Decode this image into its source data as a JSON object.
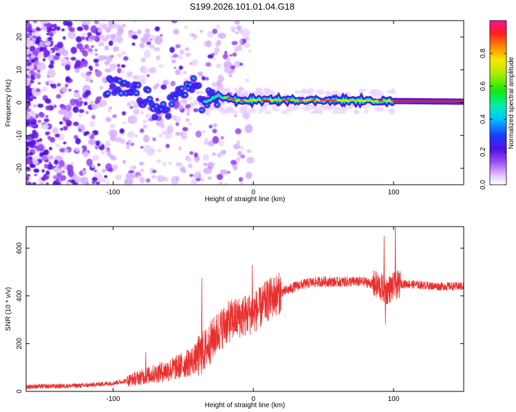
{
  "title": "S199.2026.101.01.04.G18",
  "chart_data": [
    {
      "type": "heatmap",
      "xlabel": "Height of straight line (km)",
      "ylabel": "Frequency (Hz)",
      "xlim": [
        -162,
        150
      ],
      "ylim": [
        -25,
        25
      ],
      "xticks": [
        "-100",
        "0",
        "100"
      ],
      "yticks": [
        "-20",
        "-10",
        "0",
        "10",
        "20"
      ],
      "colorbar": {
        "label": "Normalized spectral amplitude",
        "range": [
          0,
          1
        ],
        "ticks": [
          "0.0",
          "0.2",
          "0.4",
          "0.6",
          "0.8"
        ]
      },
      "ridge": [
        {
          "x": -105,
          "y": 5
        },
        {
          "x": -95,
          "y": 4
        },
        {
          "x": -85,
          "y": 3
        },
        {
          "x": -75,
          "y": 1
        },
        {
          "x": -68,
          "y": -3
        },
        {
          "x": -60,
          "y": -1
        },
        {
          "x": -50,
          "y": 4
        },
        {
          "x": -42,
          "y": 6
        },
        {
          "x": -36,
          "y": 0
        },
        {
          "x": -25,
          "y": 2
        },
        {
          "x": -18,
          "y": 1.5
        },
        {
          "x": -10,
          "y": 0.5
        },
        {
          "x": 0,
          "y": 0.8
        },
        {
          "x": 40,
          "y": 0.8
        },
        {
          "x": 90,
          "y": 0.5
        },
        {
          "x": 100,
          "y": 0.5
        },
        {
          "x": 150,
          "y": 0.3
        }
      ]
    },
    {
      "type": "line",
      "xlabel": "Height of straight line (km)",
      "ylabel": "SNR (10 * v/v)",
      "xlim": [
        -162,
        150
      ],
      "ylim": [
        0,
        690
      ],
      "xticks": [
        "-100",
        "0",
        "100"
      ],
      "yticks": [
        "0",
        "200",
        "400",
        "600"
      ],
      "color": "#e8302e",
      "series": [
        {
          "name": "SNR",
          "x": [
            -162,
            -140,
            -120,
            -100,
            -90,
            -80,
            -70,
            -60,
            -50,
            -40,
            -35,
            -30,
            -25,
            -20,
            -15,
            -10,
            -5,
            0,
            5,
            10,
            15,
            20,
            25,
            30,
            40,
            50,
            60,
            70,
            80,
            85,
            90,
            95,
            100,
            105,
            110,
            120,
            130,
            140,
            150
          ],
          "y": [
            20,
            22,
            25,
            35,
            45,
            60,
            75,
            90,
            110,
            140,
            170,
            210,
            250,
            280,
            300,
            310,
            320,
            330,
            350,
            380,
            400,
            415,
            425,
            440,
            455,
            460,
            458,
            460,
            458,
            450,
            440,
            420,
            440,
            450,
            450,
            445,
            440,
            440,
            440
          ]
        }
      ],
      "spikes": [
        {
          "x": -77,
          "y": 165
        },
        {
          "x": -37,
          "y": 475
        },
        {
          "x": -1,
          "y": 530
        },
        {
          "x": 93,
          "y": 650
        },
        {
          "x": 101,
          "y": 690
        },
        {
          "x": 94,
          "y": 280
        }
      ]
    }
  ]
}
